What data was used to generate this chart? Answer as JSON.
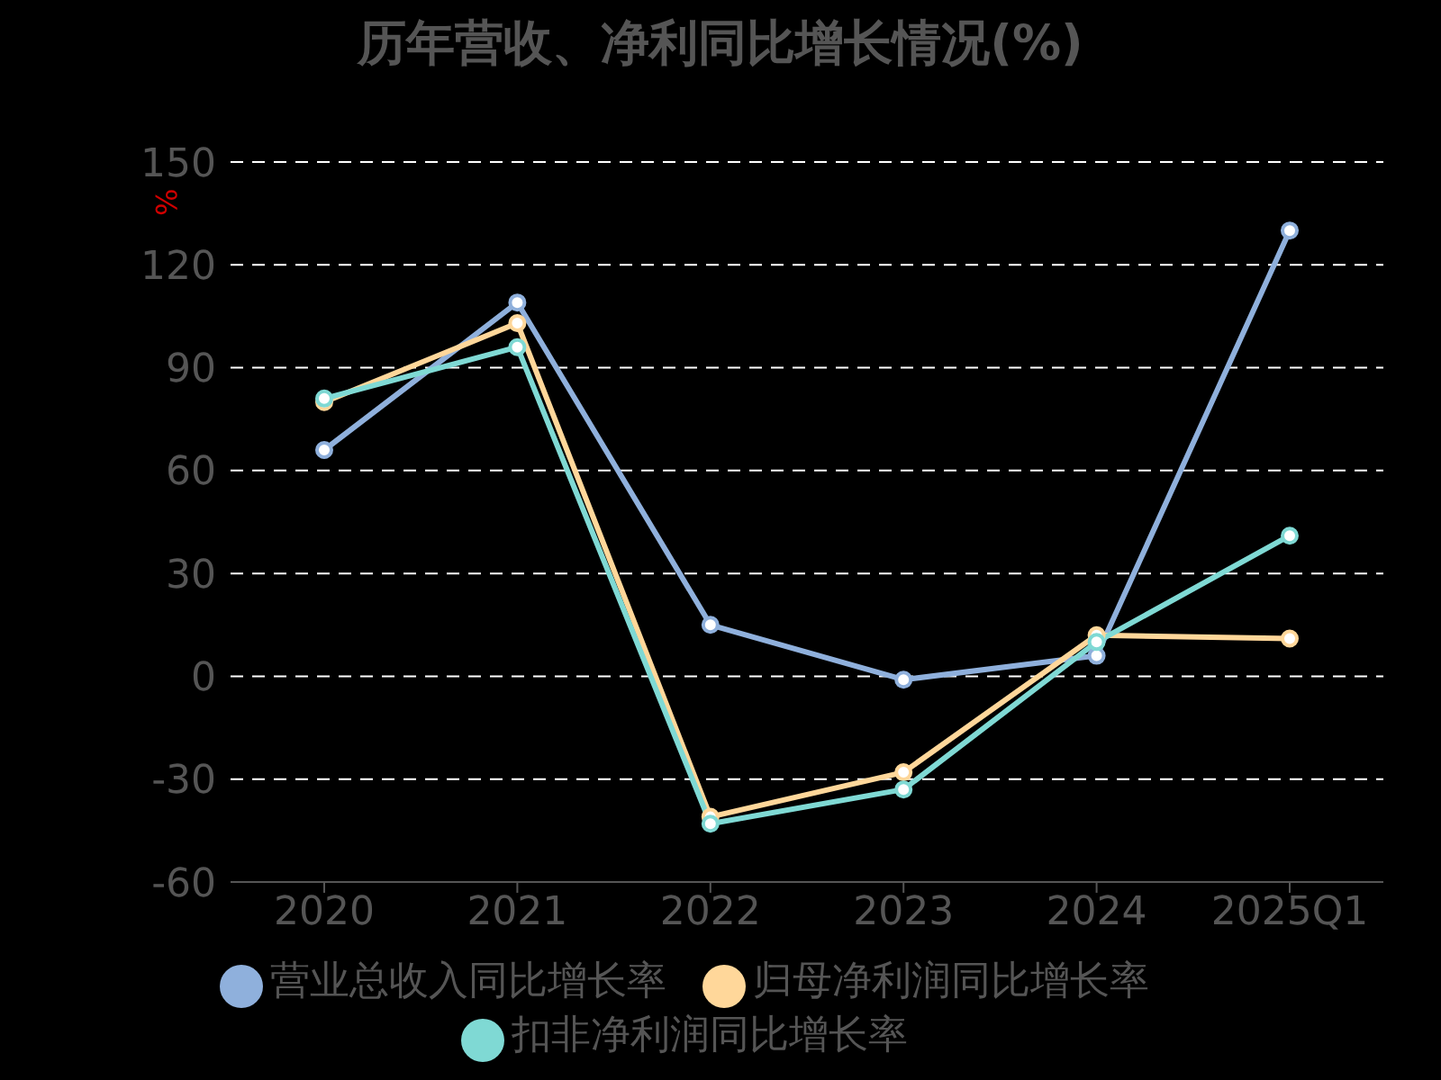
{
  "chart_data": {
    "type": "line",
    "title": "历年营收、净利同比增长情况(%)",
    "ylabel": "%",
    "categories": [
      "2020",
      "2021",
      "2022",
      "2023",
      "2024",
      "2025Q1"
    ],
    "ylim": [
      -60,
      150
    ],
    "yticks": [
      -60,
      -30,
      0,
      30,
      60,
      90,
      120,
      150
    ],
    "grid": "y",
    "legend": "bottom",
    "marker": "circle",
    "line_style": "solid",
    "series": [
      {
        "name": "营业总收入同比增长率",
        "color": "#8fb0dc",
        "values": [
          66,
          109,
          15,
          -1,
          6,
          130
        ]
      },
      {
        "name": "归母净利润同比增长率",
        "color": "#ffd79a",
        "values": [
          80,
          103,
          -41,
          -28,
          12,
          11
        ]
      },
      {
        "name": "扣非净利润同比增长率",
        "color": "#7fd9d4",
        "values": [
          81,
          96,
          -43,
          -33,
          10,
          41
        ]
      }
    ]
  }
}
